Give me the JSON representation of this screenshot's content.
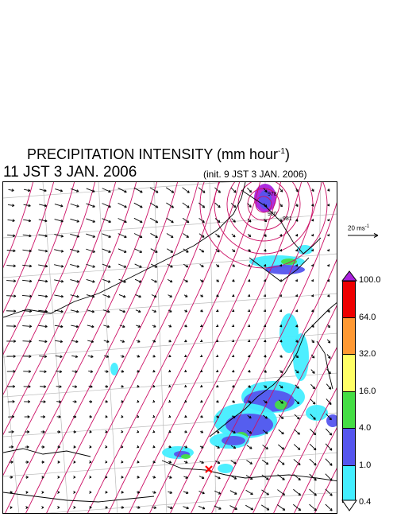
{
  "header": {
    "title": "PRECIPITATION INTENSITY (mm hour",
    "title_exp": "-1",
    "title_close": ")",
    "time": "11 JST 3 JAN. 2006",
    "init": "(init. 9 JST 3 JAN. 2006)"
  },
  "reference_vector": {
    "label": "20 ms",
    "label_exp": "-1"
  },
  "contour_labels": [
    "978",
    "980",
    "981"
  ],
  "colorbar": {
    "labels": [
      "100.0",
      "64.0",
      "32.0",
      "16.0",
      "4.0",
      "1.0",
      "0.4"
    ],
    "colors": [
      "#ee0000",
      "#ff9933",
      "#ffff66",
      "#44dd44",
      "#5555ee",
      "#44eeff"
    ],
    "top_cap_color": "#aa22dd",
    "bottom_cap_color": "#ffffff"
  },
  "map_colors": {
    "isobar": "#cc1166",
    "coast": "#000000",
    "grid": "#bbbbbb",
    "wind": "#000000",
    "marker": "#ff0000"
  }
}
